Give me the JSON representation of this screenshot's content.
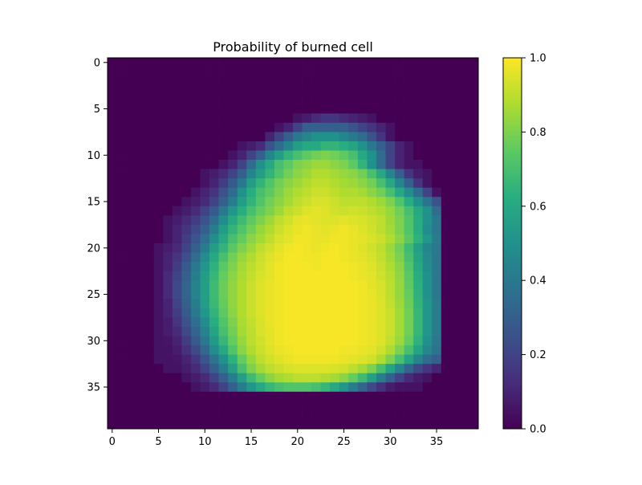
{
  "chart_data": {
    "type": "heatmap",
    "title": "Probability of burned cell",
    "xlabel": "",
    "ylabel": "",
    "grid": false,
    "colormap": "viridis",
    "x_ticks": [
      0,
      5,
      10,
      15,
      20,
      25,
      30,
      35
    ],
    "y_ticks": [
      0,
      5,
      10,
      15,
      20,
      25,
      30,
      35
    ],
    "x_extent": [
      -0.5,
      39.5
    ],
    "y_extent": [
      -0.5,
      39.5
    ],
    "colorbar": {
      "range": [
        0.0,
        1.0
      ],
      "tick_labels": [
        "0.0",
        "0.2",
        "0.4",
        "0.6",
        "0.8",
        "1.0"
      ]
    },
    "grid_size": [
      40,
      40
    ],
    "rows": [
      {
        "row": 6,
        "x0": 20,
        "values": [
          0.05,
          0.08,
          0.12,
          0.15,
          0.15,
          0.12,
          0.1,
          0.08,
          0.05
        ]
      },
      {
        "row": 7,
        "x0": 18,
        "values": [
          0.05,
          0.1,
          0.2,
          0.3,
          0.3,
          0.3,
          0.3,
          0.3,
          0.25,
          0.2,
          0.15,
          0.1,
          0.05
        ]
      },
      {
        "row": 8,
        "x0": 17,
        "values": [
          0.1,
          0.2,
          0.3,
          0.4,
          0.45,
          0.5,
          0.5,
          0.5,
          0.45,
          0.4,
          0.35,
          0.25,
          0.15,
          0.05
        ]
      },
      {
        "row": 9,
        "x0": 14,
        "values": [
          0.05,
          0.08,
          0.12,
          0.25,
          0.35,
          0.45,
          0.55,
          0.6,
          0.6,
          0.65,
          0.65,
          0.62,
          0.58,
          0.5,
          0.4,
          0.3,
          0.2,
          0.1,
          0.05
        ]
      },
      {
        "row": 10,
        "x0": 13,
        "values": [
          0.05,
          0.1,
          0.2,
          0.3,
          0.45,
          0.55,
          0.65,
          0.7,
          0.75,
          0.78,
          0.8,
          0.78,
          0.75,
          0.7,
          0.6,
          0.5,
          0.35,
          0.2,
          0.1,
          0.05
        ]
      },
      {
        "row": 11,
        "x0": 12,
        "values": [
          0.05,
          0.1,
          0.2,
          0.35,
          0.5,
          0.6,
          0.7,
          0.75,
          0.8,
          0.82,
          0.85,
          0.85,
          0.82,
          0.8,
          0.75,
          0.65,
          0.5,
          0.35,
          0.2,
          0.1,
          0.05,
          0.05
        ]
      },
      {
        "row": 12,
        "x0": 10,
        "values": [
          0.05,
          0.08,
          0.12,
          0.2,
          0.3,
          0.45,
          0.55,
          0.65,
          0.72,
          0.78,
          0.82,
          0.85,
          0.88,
          0.88,
          0.86,
          0.84,
          0.82,
          0.78,
          0.7,
          0.6,
          0.45,
          0.3,
          0.15,
          0.08,
          0.05
        ]
      },
      {
        "row": 13,
        "x0": 10,
        "values": [
          0.05,
          0.1,
          0.18,
          0.28,
          0.4,
          0.55,
          0.65,
          0.72,
          0.78,
          0.82,
          0.85,
          0.88,
          0.9,
          0.9,
          0.88,
          0.86,
          0.85,
          0.82,
          0.78,
          0.7,
          0.6,
          0.45,
          0.3,
          0.15,
          0.05
        ]
      },
      {
        "row": 14,
        "x0": 9,
        "values": [
          0.05,
          0.1,
          0.15,
          0.25,
          0.35,
          0.5,
          0.62,
          0.7,
          0.75,
          0.8,
          0.85,
          0.88,
          0.9,
          0.92,
          0.92,
          0.9,
          0.88,
          0.88,
          0.86,
          0.82,
          0.78,
          0.7,
          0.6,
          0.48,
          0.35,
          0.2,
          0.05
        ]
      },
      {
        "row": 15,
        "x0": 8,
        "values": [
          0.05,
          0.08,
          0.12,
          0.2,
          0.3,
          0.42,
          0.55,
          0.65,
          0.72,
          0.78,
          0.82,
          0.86,
          0.9,
          0.92,
          0.94,
          0.94,
          0.92,
          0.9,
          0.9,
          0.9,
          0.88,
          0.85,
          0.8,
          0.72,
          0.62,
          0.5,
          0.38,
          0.25
        ]
      },
      {
        "row": 16,
        "x0": 7,
        "values": [
          0.05,
          0.08,
          0.12,
          0.2,
          0.28,
          0.4,
          0.52,
          0.62,
          0.7,
          0.76,
          0.8,
          0.85,
          0.9,
          0.92,
          0.95,
          0.96,
          0.95,
          0.93,
          0.92,
          0.93,
          0.92,
          0.9,
          0.88,
          0.84,
          0.78,
          0.7,
          0.6,
          0.5,
          0.35
        ]
      },
      {
        "row": 17,
        "x0": 6,
        "values": [
          0.05,
          0.08,
          0.12,
          0.18,
          0.25,
          0.35,
          0.48,
          0.6,
          0.68,
          0.75,
          0.8,
          0.85,
          0.9,
          0.93,
          0.96,
          0.97,
          0.96,
          0.95,
          0.95,
          0.96,
          0.95,
          0.94,
          0.92,
          0.9,
          0.85,
          0.8,
          0.72,
          0.62,
          0.5,
          0.4
        ]
      },
      {
        "row": 18,
        "x0": 6,
        "values": [
          0.05,
          0.1,
          0.15,
          0.22,
          0.3,
          0.42,
          0.55,
          0.65,
          0.72,
          0.78,
          0.84,
          0.88,
          0.92,
          0.95,
          0.97,
          0.98,
          0.97,
          0.96,
          0.97,
          0.98,
          0.97,
          0.95,
          0.93,
          0.9,
          0.86,
          0.8,
          0.72,
          0.62,
          0.48,
          0.4
        ]
      },
      {
        "row": 19,
        "x0": 6,
        "values": [
          0.05,
          0.1,
          0.18,
          0.26,
          0.36,
          0.48,
          0.6,
          0.7,
          0.76,
          0.82,
          0.86,
          0.9,
          0.94,
          0.96,
          0.98,
          0.98,
          0.97,
          0.97,
          0.98,
          0.98,
          0.97,
          0.96,
          0.94,
          0.92,
          0.88,
          0.82,
          0.74,
          0.64,
          0.52,
          0.42
        ]
      },
      {
        "row": 20,
        "x0": 5,
        "values": [
          0.05,
          0.08,
          0.12,
          0.2,
          0.3,
          0.42,
          0.55,
          0.65,
          0.74,
          0.8,
          0.85,
          0.9,
          0.93,
          0.96,
          0.98,
          0.99,
          0.98,
          0.97,
          0.98,
          0.99,
          0.98,
          0.97,
          0.95,
          0.93,
          0.9,
          0.85,
          0.78,
          0.68,
          0.56,
          0.45,
          0.4
        ]
      },
      {
        "row": 21,
        "x0": 5,
        "values": [
          0.05,
          0.1,
          0.15,
          0.24,
          0.35,
          0.48,
          0.6,
          0.7,
          0.78,
          0.84,
          0.88,
          0.92,
          0.95,
          0.97,
          0.99,
          0.99,
          0.98,
          0.98,
          0.99,
          0.99,
          0.98,
          0.97,
          0.96,
          0.94,
          0.91,
          0.86,
          0.8,
          0.7,
          0.58,
          0.47,
          0.4
        ]
      },
      {
        "row": 22,
        "x0": 5,
        "values": [
          0.05,
          0.1,
          0.18,
          0.28,
          0.4,
          0.52,
          0.64,
          0.74,
          0.8,
          0.86,
          0.9,
          0.93,
          0.96,
          0.98,
          0.99,
          0.99,
          0.99,
          0.98,
          0.99,
          0.99,
          0.99,
          0.98,
          0.97,
          0.95,
          0.92,
          0.88,
          0.82,
          0.72,
          0.6,
          0.48,
          0.4
        ]
      },
      {
        "row": 23,
        "x0": 5,
        "values": [
          0.05,
          0.12,
          0.2,
          0.3,
          0.42,
          0.55,
          0.66,
          0.76,
          0.82,
          0.87,
          0.91,
          0.94,
          0.96,
          0.98,
          0.99,
          0.99,
          0.99,
          0.99,
          0.99,
          0.99,
          0.99,
          0.98,
          0.97,
          0.96,
          0.93,
          0.89,
          0.83,
          0.74,
          0.62,
          0.5,
          0.4
        ]
      },
      {
        "row": 24,
        "x0": 5,
        "values": [
          0.05,
          0.12,
          0.22,
          0.32,
          0.44,
          0.56,
          0.68,
          0.77,
          0.83,
          0.88,
          0.92,
          0.95,
          0.97,
          0.98,
          0.99,
          0.99,
          0.99,
          0.99,
          0.99,
          0.99,
          0.99,
          0.99,
          0.98,
          0.96,
          0.94,
          0.9,
          0.84,
          0.75,
          0.63,
          0.5,
          0.4
        ]
      },
      {
        "row": 25,
        "x0": 5,
        "values": [
          0.05,
          0.12,
          0.22,
          0.32,
          0.44,
          0.56,
          0.68,
          0.77,
          0.83,
          0.88,
          0.92,
          0.95,
          0.97,
          0.98,
          0.99,
          0.99,
          0.99,
          0.99,
          0.99,
          0.99,
          0.99,
          0.99,
          0.98,
          0.97,
          0.94,
          0.9,
          0.84,
          0.76,
          0.64,
          0.5,
          0.4
        ]
      },
      {
        "row": 26,
        "x0": 5,
        "values": [
          0.05,
          0.1,
          0.2,
          0.3,
          0.42,
          0.55,
          0.67,
          0.76,
          0.83,
          0.88,
          0.92,
          0.95,
          0.97,
          0.98,
          0.99,
          0.99,
          0.99,
          0.99,
          0.99,
          0.99,
          0.99,
          0.99,
          0.98,
          0.97,
          0.95,
          0.91,
          0.85,
          0.77,
          0.65,
          0.52,
          0.42
        ]
      },
      {
        "row": 27,
        "x0": 5,
        "values": [
          0.05,
          0.1,
          0.18,
          0.28,
          0.4,
          0.52,
          0.65,
          0.75,
          0.82,
          0.88,
          0.92,
          0.95,
          0.97,
          0.98,
          0.99,
          0.99,
          0.99,
          0.99,
          0.99,
          0.99,
          0.99,
          0.99,
          0.98,
          0.97,
          0.95,
          0.92,
          0.86,
          0.78,
          0.66,
          0.52,
          0.42
        ]
      },
      {
        "row": 28,
        "x0": 5,
        "values": [
          0.05,
          0.08,
          0.15,
          0.25,
          0.36,
          0.48,
          0.62,
          0.72,
          0.8,
          0.87,
          0.91,
          0.94,
          0.97,
          0.98,
          0.99,
          0.99,
          0.99,
          0.99,
          0.99,
          0.99,
          0.99,
          0.99,
          0.98,
          0.97,
          0.95,
          0.92,
          0.86,
          0.78,
          0.66,
          0.52,
          0.42
        ]
      },
      {
        "row": 29,
        "x0": 5,
        "values": [
          0.05,
          0.08,
          0.12,
          0.22,
          0.32,
          0.44,
          0.58,
          0.7,
          0.78,
          0.86,
          0.9,
          0.94,
          0.96,
          0.98,
          0.99,
          0.99,
          0.99,
          0.99,
          0.99,
          0.99,
          0.99,
          0.99,
          0.98,
          0.97,
          0.95,
          0.92,
          0.86,
          0.78,
          0.66,
          0.52,
          0.42
        ]
      },
      {
        "row": 30,
        "x0": 5,
        "values": [
          0.05,
          0.06,
          0.1,
          0.18,
          0.28,
          0.4,
          0.54,
          0.66,
          0.76,
          0.84,
          0.9,
          0.93,
          0.96,
          0.98,
          0.99,
          0.99,
          0.99,
          0.99,
          0.99,
          0.99,
          0.99,
          0.99,
          0.98,
          0.97,
          0.95,
          0.91,
          0.85,
          0.76,
          0.64,
          0.5,
          0.4
        ]
      },
      {
        "row": 31,
        "x0": 5,
        "values": [
          0.05,
          0.05,
          0.08,
          0.14,
          0.22,
          0.34,
          0.48,
          0.6,
          0.72,
          0.82,
          0.88,
          0.92,
          0.95,
          0.97,
          0.98,
          0.99,
          0.99,
          0.99,
          0.99,
          0.99,
          0.98,
          0.98,
          0.97,
          0.96,
          0.93,
          0.88,
          0.8,
          0.7,
          0.58,
          0.46,
          0.38
        ]
      },
      {
        "row": 32,
        "x0": 5,
        "values": [
          0.05,
          0.05,
          0.06,
          0.1,
          0.16,
          0.26,
          0.38,
          0.5,
          0.64,
          0.76,
          0.84,
          0.9,
          0.93,
          0.95,
          0.97,
          0.98,
          0.98,
          0.98,
          0.98,
          0.98,
          0.97,
          0.96,
          0.95,
          0.93,
          0.88,
          0.8,
          0.7,
          0.58,
          0.45,
          0.35,
          0.3
        ]
      },
      {
        "row": 33,
        "x0": 6,
        "values": [
          0.05,
          0.05,
          0.08,
          0.12,
          0.2,
          0.3,
          0.42,
          0.56,
          0.7,
          0.8,
          0.86,
          0.9,
          0.92,
          0.94,
          0.95,
          0.95,
          0.95,
          0.95,
          0.94,
          0.93,
          0.9,
          0.86,
          0.8,
          0.7,
          0.58,
          0.45,
          0.32,
          0.22,
          0.15,
          0.1
        ]
      },
      {
        "row": 34,
        "x0": 8,
        "values": [
          0.05,
          0.08,
          0.12,
          0.2,
          0.3,
          0.42,
          0.56,
          0.68,
          0.76,
          0.82,
          0.86,
          0.88,
          0.9,
          0.9,
          0.9,
          0.88,
          0.86,
          0.82,
          0.76,
          0.68,
          0.56,
          0.42,
          0.3,
          0.2,
          0.12,
          0.08,
          0.05
        ]
      },
      {
        "row": 35,
        "x0": 9,
        "values": [
          0.05,
          0.08,
          0.12,
          0.2,
          0.3,
          0.42,
          0.52,
          0.6,
          0.66,
          0.7,
          0.72,
          0.72,
          0.72,
          0.7,
          0.66,
          0.6,
          0.52,
          0.42,
          0.32,
          0.22,
          0.14,
          0.08,
          0.05,
          0.05,
          0.05
        ]
      }
    ]
  }
}
